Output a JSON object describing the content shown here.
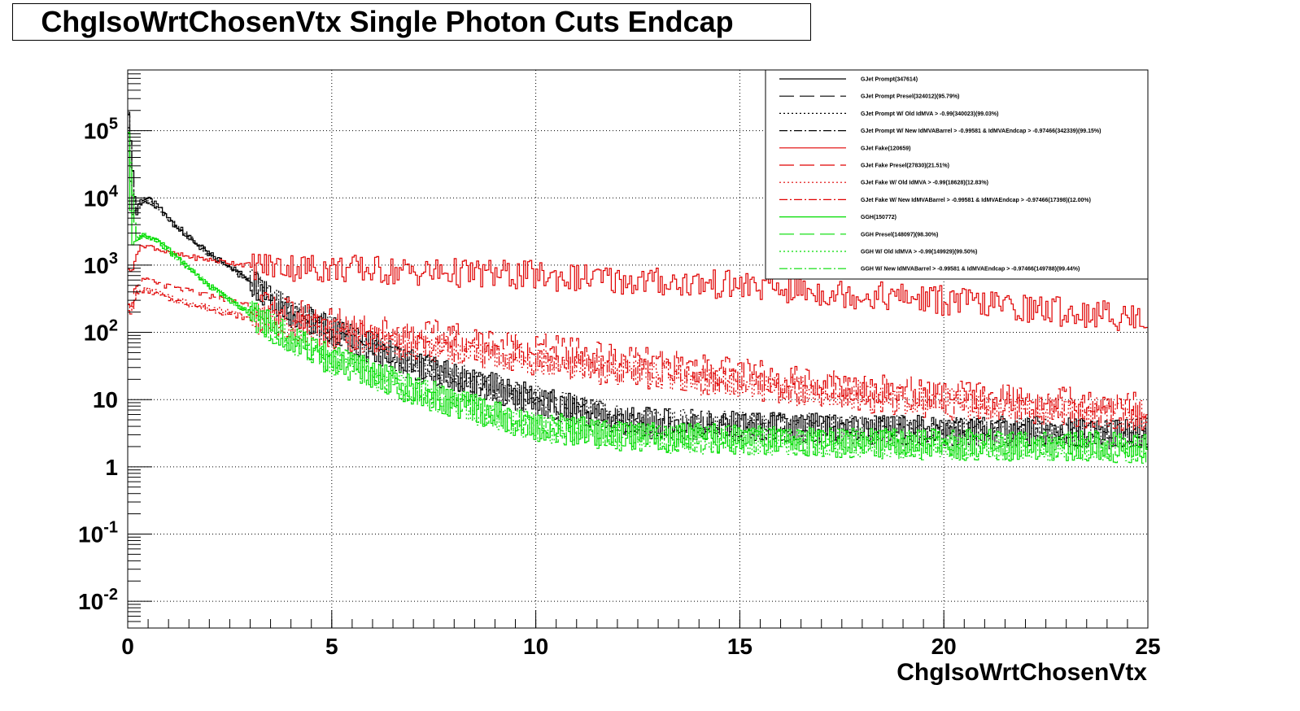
{
  "chart_data": {
    "type": "line",
    "title": "ChgIsoWrtChosenVtx Single Photon Cuts Endcap",
    "xlabel": "ChgIsoWrtChosenVtx",
    "ylabel": "",
    "xlim": [
      0,
      25
    ],
    "ylim": [
      0.004,
      800000
    ],
    "y_scale": "log",
    "grid": true,
    "legend_position": "top-right",
    "x_ticks": [
      "0",
      "5",
      "10",
      "15",
      "20",
      "25"
    ],
    "y_ticks": [
      {
        "value": 0.01,
        "base": "10",
        "exp": "-2"
      },
      {
        "value": 0.1,
        "base": "10",
        "exp": "-1"
      },
      {
        "value": 1,
        "base": "1",
        "exp": ""
      },
      {
        "value": 10,
        "base": "10",
        "exp": ""
      },
      {
        "value": 100,
        "base": "10",
        "exp": "2"
      },
      {
        "value": 1000,
        "base": "10",
        "exp": "3"
      },
      {
        "value": 10000,
        "base": "10",
        "exp": "4"
      },
      {
        "value": 100000,
        "base": "10",
        "exp": "5"
      }
    ],
    "series": [
      {
        "name": "GJet Prompt(347614)",
        "color": "#000000",
        "dash": "",
        "x": [
          0,
          0.1,
          0.2,
          0.3,
          0.4,
          0.6,
          0.8,
          1,
          1.5,
          2,
          2.5,
          3,
          3.5,
          4,
          5,
          6,
          7,
          8,
          9,
          10,
          11,
          12,
          13,
          15,
          17,
          20,
          22,
          25
        ],
        "y": [
          330000,
          6000,
          6500,
          9000,
          10000,
          9000,
          7000,
          5000,
          2600,
          1500,
          1000,
          600,
          350,
          200,
          110,
          60,
          35,
          22,
          15,
          10,
          7,
          5,
          4.5,
          4,
          3.8,
          3.5,
          3.4,
          3.2
        ]
      },
      {
        "name": "GJet Prompt Presel(324012)(95.79%)",
        "color": "#000000",
        "dash": "18,7",
        "x": [
          0,
          0.2,
          0.4,
          0.8,
          1,
          2,
          3,
          4,
          5,
          6,
          7,
          8,
          9,
          10,
          11,
          12,
          13,
          15,
          17,
          20,
          25
        ],
        "y": [
          300000,
          5500,
          9000,
          6500,
          4700,
          1400,
          560,
          190,
          100,
          55,
          32,
          20,
          14,
          9.5,
          6.5,
          4.8,
          4.3,
          3.8,
          3.6,
          3.3,
          3.0
        ]
      },
      {
        "name": "GJet Prompt W/ Old IdMVA > -0.99(340023)(99.03%)",
        "color": "#000000",
        "dash": "2,3",
        "x": [
          0,
          0.2,
          0.4,
          0.8,
          1,
          2,
          3,
          4,
          5,
          6,
          7,
          8,
          9,
          10,
          11,
          12,
          13,
          15,
          17,
          20,
          25
        ],
        "y": [
          320000,
          5800,
          9500,
          6800,
          4900,
          1450,
          580,
          195,
          105,
          58,
          34,
          21,
          14.5,
          9.8,
          6.8,
          4.9,
          4.4,
          3.9,
          3.7,
          3.4,
          3.1
        ]
      },
      {
        "name": "GJet Prompt W/ New IdMVABarrel > -0.99581 & IdMVAEndcap > -0.97466(342339)(99.15%)",
        "color": "#000000",
        "dash": "10,3,2,3",
        "x": [
          0,
          0.2,
          0.4,
          0.8,
          1,
          2,
          3,
          4,
          5,
          6,
          7,
          8,
          9,
          10,
          11,
          12,
          13,
          15,
          17,
          20,
          25
        ],
        "y": [
          325000,
          5900,
          9700,
          6900,
          4950,
          1470,
          590,
          198,
          107,
          59,
          34,
          21,
          14.7,
          9.9,
          6.9,
          5.0,
          4.5,
          4.0,
          3.7,
          3.4,
          3.1
        ]
      },
      {
        "name": "GJet Fake(120659)",
        "color": "#e00000",
        "dash": "",
        "x": [
          0,
          0.1,
          0.2,
          0.4,
          0.7,
          1,
          2,
          3,
          5,
          7,
          10,
          12,
          15,
          17,
          20,
          22,
          25
        ],
        "y": [
          1000,
          700,
          1500,
          2000,
          1800,
          1500,
          1200,
          1000,
          900,
          800,
          700,
          600,
          500,
          400,
          300,
          230,
          160
        ]
      },
      {
        "name": "GJet Fake Presel(27830)(21.51%)",
        "color": "#e00000",
        "dash": "18,7",
        "x": [
          0,
          0.1,
          0.2,
          0.4,
          0.7,
          1,
          2,
          3,
          4,
          5,
          7,
          10,
          12,
          15,
          17,
          20,
          25
        ],
        "y": [
          300,
          250,
          500,
          600,
          550,
          480,
          350,
          260,
          200,
          150,
          100,
          60,
          40,
          25,
          18,
          12,
          8
        ]
      },
      {
        "name": "GJet Fake W/ Old IdMVA > -0.99(18628)(12.83%)",
        "color": "#e00000",
        "dash": "2,3",
        "x": [
          0,
          0.1,
          0.2,
          0.4,
          0.7,
          1,
          2,
          3,
          4,
          5,
          7,
          10,
          12,
          15,
          17,
          20,
          25
        ],
        "y": [
          250,
          200,
          380,
          450,
          400,
          330,
          230,
          170,
          130,
          100,
          65,
          40,
          28,
          18,
          13,
          9,
          6
        ]
      },
      {
        "name": "GJet Fake W/ New IdMVABarrel > -0.99581 & IdMVAEndcap > -0.97466(17398)(12.00%)",
        "color": "#e00000",
        "dash": "10,3,2,3",
        "x": [
          0,
          0.1,
          0.2,
          0.4,
          0.7,
          1,
          2,
          3,
          4,
          5,
          7,
          10,
          12,
          15,
          17,
          20,
          25
        ],
        "y": [
          240,
          190,
          360,
          430,
          380,
          315,
          220,
          160,
          125,
          95,
          62,
          38,
          26,
          17,
          12,
          8.5,
          5.5
        ]
      },
      {
        "name": "GGH(150772)",
        "color": "#00dd00",
        "dash": "",
        "x": [
          0,
          0.1,
          0.2,
          0.4,
          0.7,
          1,
          1.5,
          2,
          2.5,
          3,
          3.5,
          4,
          5,
          6,
          7,
          8,
          9,
          10,
          12,
          15,
          20,
          25
        ],
        "y": [
          150000,
          2000,
          2500,
          2800,
          2400,
          1700,
          900,
          500,
          300,
          200,
          130,
          80,
          40,
          25,
          14,
          9,
          6,
          4,
          3,
          2.5,
          2.2,
          2
        ]
      },
      {
        "name": "GGH Presel(148097)(98.30%)",
        "color": "#00dd00",
        "dash": "18,7",
        "x": [
          0,
          0.2,
          0.4,
          0.7,
          1,
          2,
          3,
          4,
          5,
          6,
          7,
          8,
          10,
          12,
          15,
          20,
          25
        ],
        "y": [
          145000,
          2400,
          2700,
          2300,
          1650,
          480,
          190,
          78,
          38,
          24,
          13.5,
          8.7,
          3.9,
          2.9,
          2.4,
          2.1,
          1.9
        ]
      },
      {
        "name": "GGH W/ Old IdMVA > -0.99(149929)(99.50%)",
        "color": "#00dd00",
        "dash": "2,3",
        "x": [
          0,
          0.2,
          0.4,
          0.7,
          1,
          2,
          3,
          4,
          5,
          6,
          7,
          8,
          10,
          12,
          15,
          20,
          25
        ],
        "y": [
          148000,
          2450,
          2750,
          2350,
          1680,
          490,
          195,
          79,
          39,
          24.5,
          13.8,
          8.8,
          3.95,
          2.95,
          2.45,
          2.15,
          1.95
        ]
      },
      {
        "name": "GGH W/ New IdMVABarrel > -0.99581 & IdMVAEndcap > -0.97466(149788)(99.44%)",
        "color": "#00dd00",
        "dash": "10,3,2,3",
        "x": [
          0,
          0.2,
          0.4,
          0.7,
          1,
          2,
          3,
          4,
          5,
          6,
          7,
          8,
          10,
          12,
          15,
          20,
          25
        ],
        "y": [
          147500,
          2440,
          2740,
          2340,
          1675,
          488,
          194,
          79,
          39,
          24.4,
          13.7,
          8.8,
          3.9,
          2.9,
          2.4,
          2.1,
          1.9
        ]
      }
    ]
  }
}
